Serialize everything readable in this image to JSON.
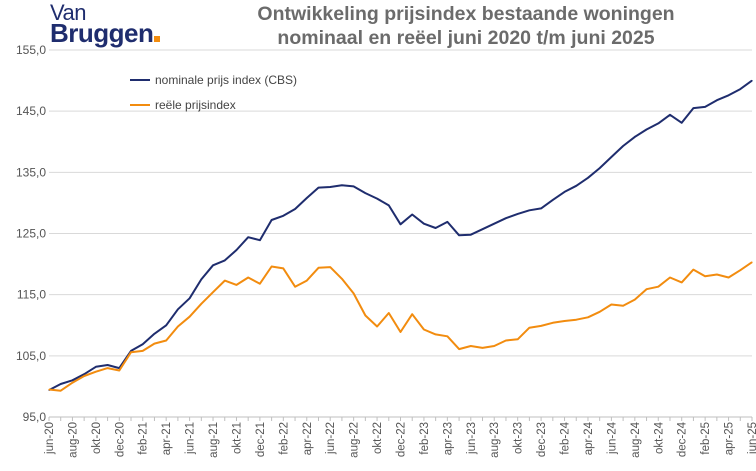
{
  "logo": {
    "line1": "Van",
    "line2": "Bruggen",
    "accent": "#f28c0f",
    "brand": "#1f2d6e"
  },
  "title_line1": "Ontwikkeling prijsindex bestaande woningen",
  "title_line2": "nominaal en reëel juni 2020 t/m juni 2025",
  "chart_data": {
    "type": "line",
    "title": "Ontwikkeling prijsindex bestaande woningen nominaal en reëel juni 2020 t/m juni 2025",
    "ylim": [
      95,
      155
    ],
    "yticks": [
      "95,0",
      "105,0",
      "115,0",
      "125,0",
      "135,0",
      "145,0",
      "155,0"
    ],
    "ytick_values": [
      95,
      105,
      115,
      125,
      135,
      145,
      155
    ],
    "grid": true,
    "legend_position": "top-left",
    "categories": [
      "jun-20",
      "jul-20",
      "aug-20",
      "sep-20",
      "okt-20",
      "nov-20",
      "dec-20",
      "jan-21",
      "feb-21",
      "mrt-21",
      "apr-21",
      "mei-21",
      "jun-21",
      "jul-21",
      "aug-21",
      "sep-21",
      "okt-21",
      "nov-21",
      "dec-21",
      "jan-22",
      "feb-22",
      "mrt-22",
      "apr-22",
      "mei-22",
      "jun-22",
      "jul-22",
      "aug-22",
      "sep-22",
      "okt-22",
      "nov-22",
      "dec-22",
      "jan-23",
      "feb-23",
      "mrt-23",
      "apr-23",
      "mei-23",
      "jun-23",
      "jul-23",
      "aug-23",
      "sep-23",
      "okt-23",
      "nov-23",
      "dec-23",
      "jan-24",
      "feb-24",
      "mrt-24",
      "apr-24",
      "mei-24",
      "jun-24",
      "jul-24",
      "aug-24",
      "sep-24",
      "okt-24",
      "nov-24",
      "dec-24",
      "jan-25",
      "feb-25",
      "mrt-25",
      "apr-25",
      "mei-25",
      "jun-25"
    ],
    "xtick_labels": [
      "jun-20",
      "aug-20",
      "okt-20",
      "dec-20",
      "feb-21",
      "apr-21",
      "jun-21",
      "aug-21",
      "okt-21",
      "dec-21",
      "feb-22",
      "apr-22",
      "jun-22",
      "aug-22",
      "okt-22",
      "dec-22",
      "feb-23",
      "apr-23",
      "jun-23",
      "aug-23",
      "okt-23",
      "dec-23",
      "feb-24",
      "apr-24",
      "jun-24",
      "aug-24",
      "okt-24",
      "dec-24",
      "feb-25",
      "apr-25",
      "jun-25"
    ],
    "series": [
      {
        "name": "nominale prijs index (CBS)",
        "color": "#1f2d6e",
        "values": [
          99.4,
          100.4,
          101.0,
          102.0,
          103.2,
          103.5,
          103.0,
          105.8,
          106.9,
          108.6,
          110.0,
          112.6,
          114.4,
          117.5,
          119.8,
          120.6,
          122.3,
          124.4,
          123.9,
          127.2,
          127.9,
          129.0,
          130.8,
          132.5,
          132.6,
          132.9,
          132.7,
          131.6,
          130.7,
          129.6,
          126.5,
          128.1,
          126.6,
          125.9,
          126.9,
          124.7,
          124.8,
          125.7,
          126.6,
          127.5,
          128.2,
          128.8,
          129.1,
          130.5,
          131.8,
          132.8,
          134.1,
          135.7,
          137.5,
          139.3,
          140.8,
          142.0,
          143.0,
          144.4,
          143.1,
          145.5,
          145.7,
          146.8,
          147.6,
          148.6,
          150.0
        ]
      },
      {
        "name": "reële prijsindex",
        "color": "#f28c0f",
        "values": [
          99.5,
          99.3,
          100.6,
          101.7,
          102.4,
          103.0,
          102.6,
          105.6,
          105.8,
          107.0,
          107.5,
          109.8,
          111.4,
          113.5,
          115.4,
          117.3,
          116.6,
          117.8,
          116.8,
          119.6,
          119.3,
          116.3,
          117.3,
          119.4,
          119.5,
          117.6,
          115.2,
          111.6,
          109.8,
          112.0,
          108.9,
          111.8,
          109.3,
          108.5,
          108.2,
          106.1,
          106.6,
          106.3,
          106.6,
          107.5,
          107.7,
          109.6,
          109.9,
          110.4,
          110.7,
          110.9,
          111.3,
          112.2,
          113.4,
          113.2,
          114.2,
          115.9,
          116.3,
          117.8,
          117.0,
          119.1,
          118.0,
          118.3,
          117.8,
          119.0,
          120.3
        ]
      }
    ]
  }
}
